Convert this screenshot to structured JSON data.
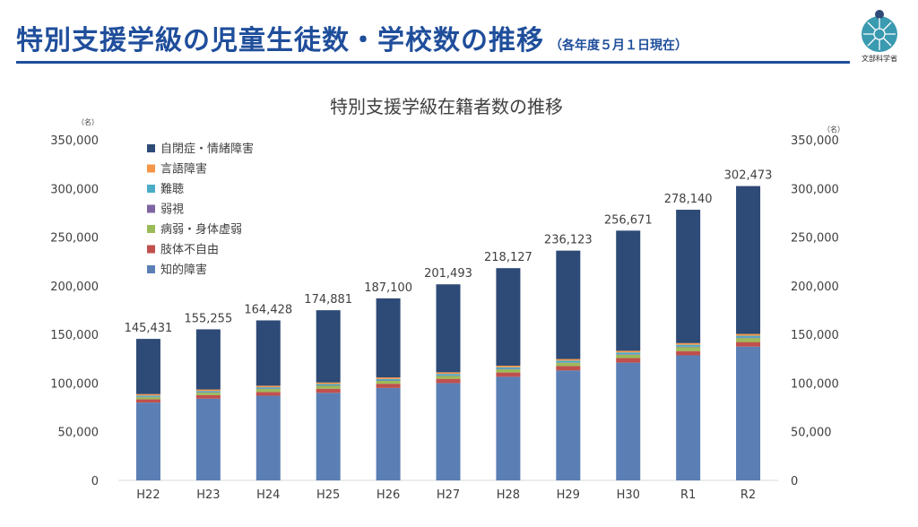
{
  "header": {
    "title": "特別支援学級の児童生徒数・学校数の推移",
    "subtitle": "（各年度５月１日現在）",
    "org": "文部科学省"
  },
  "chart_data": {
    "type": "bar",
    "stacked": true,
    "title": "特別支援学級在籍者数の推移",
    "unit_left": "（名）",
    "unit_right": "（名）",
    "ylim": [
      0,
      350000
    ],
    "yticks": [
      "0",
      "50,000",
      "100,000",
      "150,000",
      "200,000",
      "250,000",
      "300,000",
      "350,000"
    ],
    "categories": [
      "H22",
      "H23",
      "H24",
      "H25",
      "H26",
      "H27",
      "H28",
      "H29",
      "H30",
      "R1",
      "R2"
    ],
    "totals": [
      145431,
      155255,
      164428,
      174881,
      187100,
      201493,
      218127,
      236123,
      256671,
      278140,
      302473
    ],
    "total_labels": [
      "145,431",
      "155,255",
      "164,428",
      "174,881",
      "187,100",
      "201,493",
      "218,127",
      "236,123",
      "256,671",
      "278,140",
      "302,473"
    ],
    "legend_placement": "top-left",
    "legend_order": [
      "自閉症・情緒障害",
      "言語障害",
      "難聴",
      "弱視",
      "病弱・身体虚弱",
      "肢体不自由",
      "知的障害"
    ],
    "series": [
      {
        "name": "知的障害",
        "color": "#5b7fb5",
        "values": [
          80000,
          84000,
          87000,
          90000,
          95000,
          100000,
          106500,
          113000,
          121000,
          128500,
          137500
        ]
      },
      {
        "name": "肢体不自由",
        "color": "#c0504d",
        "values": [
          3300,
          3600,
          3900,
          4200,
          4300,
          4400,
          4400,
          4500,
          4700,
          4400,
          4700
        ]
      },
      {
        "name": "病弱・身体虚弱",
        "color": "#9bbb59",
        "values": [
          2200,
          2600,
          3000,
          3000,
          3000,
          3000,
          3200,
          3300,
          3400,
          4000,
          4000
        ]
      },
      {
        "name": "弱視",
        "color": "#8064a2",
        "values": [
          400,
          400,
          400,
          400,
          400,
          500,
          500,
          500,
          600,
          600,
          600
        ]
      },
      {
        "name": "難聴",
        "color": "#4bacc6",
        "values": [
          1300,
          1300,
          1400,
          1400,
          1500,
          1600,
          1700,
          1800,
          1800,
          1900,
          1900
        ]
      },
      {
        "name": "言語障害",
        "color": "#f79646",
        "values": [
          1500,
          1500,
          1600,
          1600,
          1600,
          1600,
          1600,
          1600,
          1700,
          1700,
          1800
        ]
      },
      {
        "name": "自閉症・情緒障害",
        "color": "#2e4a76",
        "values": [
          56731,
          61855,
          67128,
          74281,
          81300,
          90393,
          100227,
          111423,
          123471,
          137040,
          151973
        ]
      }
    ]
  }
}
